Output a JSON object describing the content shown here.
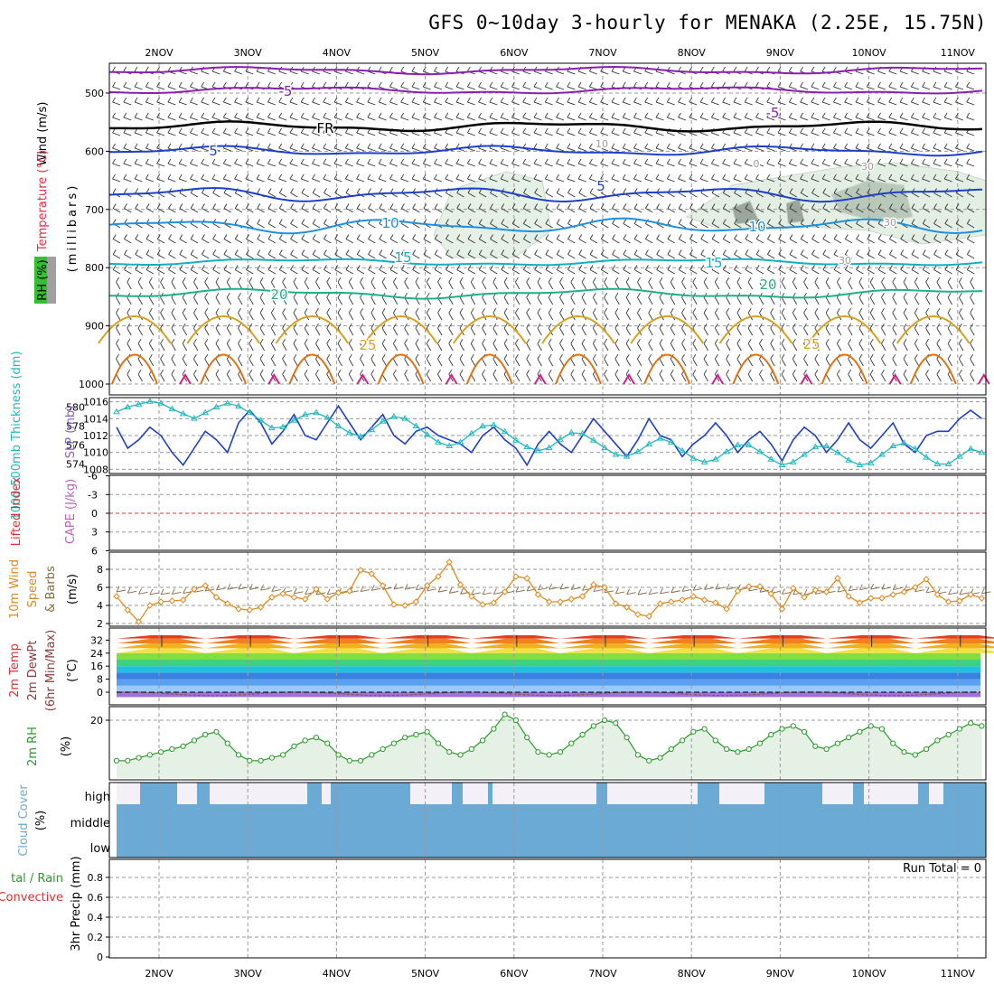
{
  "title": "GFS 0~10day 3-hourly for MENAKA (2.25E, 15.75N)",
  "x_axis": {
    "day_labels": [
      "2NOV",
      "3NOV",
      "4NOV",
      "5NOV",
      "6NOV",
      "7NOV",
      "8NOV",
      "9NOV",
      "10NOV",
      "11NOV"
    ],
    "start": "1NOV 12Z",
    "end": "11NOV 06Z",
    "step_hours": 3
  },
  "panels": {
    "upper_air": {
      "ylabel_wind": "Wind (m/s)",
      "ylabel_temp": "Temperature (°C)",
      "ylabel_unit": "(millibars)",
      "ylabel_rh": "RH (%)",
      "y_ticks": [
        "500",
        "600",
        "700",
        "800",
        "900",
        "1000"
      ],
      "contour_labels": [
        "-5",
        "-5",
        "FR",
        "5",
        "5",
        "10",
        "10",
        "15",
        "15",
        "20",
        "20",
        "25",
        "25",
        "10",
        "0",
        "30",
        "30",
        "30"
      ]
    },
    "thickness_slp": {
      "ylabel_thick": "1000-500mb Thickness (dm)",
      "ylabel_slp": "SLP (mb)",
      "left_ticks": [
        "580",
        "578",
        "576",
        "574"
      ],
      "right_ticks": [
        "1016",
        "1014",
        "1012",
        "1010",
        "1008"
      ]
    },
    "lifted_cape": {
      "ylabel_li": "Lifted Index",
      "ylabel_cape": "CAPE (J/kg)",
      "ticks": [
        "-6",
        "-3",
        "0",
        "3",
        "6"
      ]
    },
    "wind10m": {
      "ylabel1": "10m Wind",
      "ylabel2": "Speed",
      "ylabel3": "& Barbs",
      "ylabel_unit": "(m/s)",
      "ticks": [
        "8",
        "6",
        "4",
        "2"
      ]
    },
    "temp2m": {
      "ylabel1": "2m Temp",
      "ylabel2": "2m DewPt",
      "ylabel3": "(6hr Min/Max)",
      "ylabel_unit": "(°C)",
      "ticks": [
        "32",
        "24",
        "16",
        "8",
        "0"
      ]
    },
    "rh2m": {
      "ylabel": "2m RH",
      "ylabel_unit": "(%)",
      "ticks": [
        "20"
      ]
    },
    "cloud": {
      "ylabel": "Cloud Cover",
      "ylabel_unit": "(%)",
      "levels": [
        "high",
        "middle",
        "low"
      ]
    },
    "precip": {
      "ylabel1": "tal / Rain",
      "ylabel2": "Convective",
      "ylabel3": "3hr Precip (mm)",
      "ticks": [
        "0.8",
        "0.6",
        "0.4",
        "0.2",
        "0"
      ],
      "run_total": "Run Total = 0"
    }
  },
  "colors": {
    "temp_neg5": "#8a1fb0",
    "freezing": "#000000",
    "temp_5": "#1f3fc8",
    "temp_10": "#1e90e0",
    "temp_15": "#10b0c0",
    "temp_20": "#1fb08a",
    "temp_25": "#d9a020",
    "temp_30": "#e07010",
    "thickness": "#20b8c0",
    "slp": "#1f3fc8",
    "wind_speed": "#e08a20",
    "rh2m": "#2a9a2a",
    "cloud": "#6aaad4",
    "lifted_index_zero": "#e03030"
  },
  "chart_data": [
    {
      "type": "line",
      "name": "1000-500mb Thickness / SLP",
      "x_unit": "3-hourly steps from 1NOV 12Z",
      "series": [
        {
          "name": "SLP (mb)",
          "axis": "right",
          "ylim": [
            1008,
            1016
          ],
          "values": [
            1013.0,
            1010.5,
            1011.5,
            1013.0,
            1012.0,
            1010.0,
            1008.5,
            1010.5,
            1012.5,
            1011.5,
            1010.0,
            1013.5,
            1015.0,
            1013.5,
            1011.0,
            1012.5,
            1014.5,
            1012.0,
            1011.5,
            1013.5,
            1015.5,
            1013.5,
            1011.5,
            1013.0,
            1014.5,
            1012.0,
            1011.0,
            1012.5,
            1013.0,
            1012.0,
            1011.5,
            1011.0,
            1010.0,
            1012.0,
            1013.0,
            1011.5,
            1010.5,
            1008.5,
            1011.0,
            1012.5,
            1011.0,
            1010.0,
            1012.0,
            1014.0,
            1012.5,
            1011.0,
            1009.5,
            1011.5,
            1014.0,
            1012.0,
            1011.5,
            1009.5,
            1011.0,
            1012.0,
            1013.5,
            1012.0,
            1010.0,
            1011.5,
            1012.5,
            1011.0,
            1009.0,
            1011.5,
            1013.0,
            1012.0,
            1010.0,
            1011.5,
            1013.5,
            1011.5,
            1010.5,
            1012.0,
            1013.5,
            1011.0,
            1010.0,
            1012.0,
            1012.5,
            1012.5,
            1014.0,
            1015.0,
            1014.0
          ]
        },
        {
          "name": "Thickness (dm)",
          "axis": "left",
          "ylim": [
            573,
            581
          ],
          "values": [
            579.5,
            580.0,
            580.3,
            580.6,
            580.4,
            579.8,
            579.3,
            578.8,
            579.4,
            580.0,
            580.4,
            580.1,
            579.4,
            578.6,
            577.8,
            577.9,
            578.6,
            579.2,
            579.4,
            578.9,
            578.0,
            577.3,
            576.9,
            577.6,
            578.5,
            579.0,
            578.8,
            578.0,
            577.1,
            576.3,
            575.9,
            576.3,
            577.2,
            578.0,
            578.1,
            577.4,
            576.5,
            575.8,
            575.4,
            575.7,
            576.6,
            577.3,
            577.2,
            576.5,
            575.7,
            575.0,
            574.8,
            575.3,
            576.1,
            576.7,
            576.3,
            575.4,
            574.6,
            574.2,
            574.5,
            575.3,
            576.0,
            576.0,
            575.3,
            574.5,
            573.9,
            574.2,
            575.0,
            575.8,
            575.9,
            575.2,
            574.4,
            573.9,
            574.1,
            575.0,
            575.9,
            576.2,
            575.6,
            574.7,
            574.0,
            574.0,
            574.8,
            575.6,
            575.2
          ]
        }
      ]
    },
    {
      "type": "line",
      "name": "10m Wind Speed",
      "ylim": [
        2,
        9
      ],
      "series": [
        {
          "name": "Speed (m/s)",
          "values": [
            5.0,
            3.5,
            2.2,
            4.0,
            4.4,
            4.5,
            4.6,
            5.8,
            6.2,
            4.9,
            4.2,
            3.6,
            3.5,
            3.8,
            4.9,
            5.3,
            4.9,
            4.7,
            5.8,
            4.7,
            5.4,
            5.6,
            7.9,
            7.5,
            6.2,
            4.1,
            4.0,
            4.4,
            6.2,
            7.2,
            8.8,
            6.3,
            5.0,
            4.1,
            4.3,
            5.5,
            7.2,
            7.0,
            5.2,
            4.4,
            4.4,
            4.7,
            5.0,
            6.3,
            6.0,
            4.2,
            3.8,
            3.0,
            2.8,
            4.2,
            4.4,
            4.6,
            5.0,
            4.6,
            4.3,
            3.6,
            5.6,
            6.1,
            6.1,
            5.3,
            3.6,
            5.9,
            4.9,
            5.7,
            5.5,
            7.0,
            5.0,
            4.3,
            4.8,
            4.8,
            5.2,
            5.5,
            6.0,
            6.9,
            5.2,
            4.4,
            4.5,
            5.2,
            4.8
          ]
        }
      ]
    },
    {
      "type": "area",
      "name": "2m Temp",
      "ylim": [
        -3,
        36
      ],
      "series": [
        {
          "name": "2m Temp (°C)",
          "daily_max": [
            35,
            35,
            35,
            35,
            35,
            35,
            35,
            35,
            35,
            35
          ],
          "daily_min": [
            24,
            24,
            24,
            24,
            24,
            24,
            24,
            24,
            24,
            24
          ]
        },
        {
          "name": "2m DewPt (°C)",
          "values_approx": [
            -1,
            -2,
            -1,
            -1,
            -1,
            0,
            0,
            -1,
            0,
            0
          ]
        }
      ]
    },
    {
      "type": "line",
      "name": "2m RH",
      "ylim": [
        0,
        30
      ],
      "series": [
        {
          "name": "2m RH (%)",
          "values": [
            6,
            6,
            7,
            8,
            9,
            10,
            11,
            13,
            15,
            16,
            12,
            8,
            6,
            6,
            7,
            8,
            11,
            13,
            14,
            12,
            8,
            6,
            6,
            8,
            10,
            12,
            14,
            15,
            16,
            12,
            9,
            8,
            10,
            13,
            17,
            22,
            20,
            14,
            9,
            8,
            9,
            12,
            15,
            18,
            20,
            19,
            14,
            8,
            6,
            7,
            10,
            13,
            16,
            17,
            13,
            10,
            9,
            10,
            12,
            15,
            17,
            18,
            16,
            11,
            10,
            12,
            14,
            16,
            18,
            17,
            12,
            9,
            8,
            10,
            13,
            15,
            17,
            19,
            18
          ]
        }
      ]
    },
    {
      "type": "bar",
      "name": "3hr Precip",
      "ylim": [
        0,
        1
      ],
      "series": [
        {
          "name": "3hr Precip (mm)",
          "values": []
        }
      ],
      "run_total": 0
    }
  ]
}
